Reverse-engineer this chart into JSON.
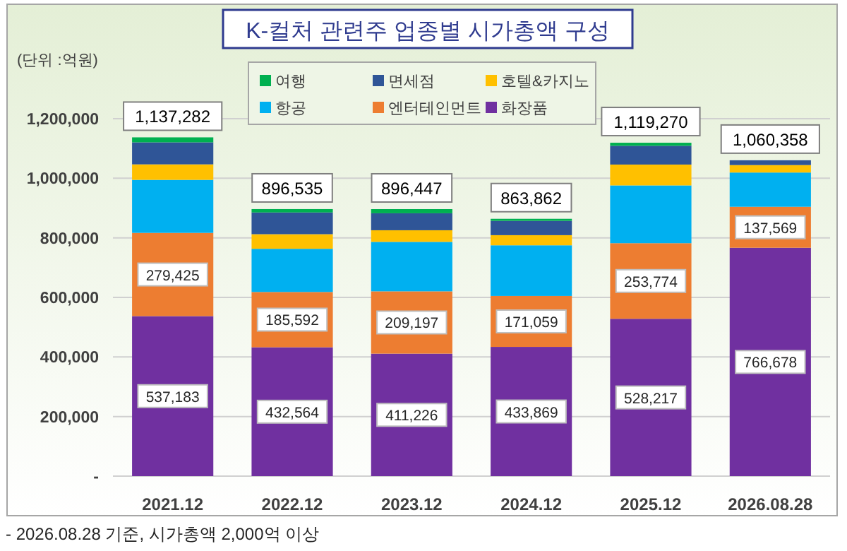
{
  "chart_data": {
    "type": "bar",
    "stacked": true,
    "title": "K-컬처 관련주 업종별 시가총액 구성",
    "ylabel": "(단위 :억원)",
    "annotations": [
      "- 2026.08.28 기준, 시가총액 2,000억 이상"
    ],
    "categories": [
      "2021.12",
      "2022.12",
      "2023.12",
      "2024.12",
      "2025.12",
      "2026.08.28"
    ],
    "series": [
      {
        "name": "화장품",
        "color": "#7030a0",
        "values": [
          537183,
          432564,
          411226,
          433869,
          528217,
          766678
        ],
        "value_labels": [
          "537,183",
          "432,564",
          "411,226",
          "433,869",
          "528,217",
          "766,678"
        ]
      },
      {
        "name": "엔터테인먼트",
        "color": "#ed7d31",
        "values": [
          279425,
          185592,
          209197,
          171059,
          253774,
          137569
        ],
        "value_labels": [
          "279,425",
          "185,592",
          "209,197",
          "171,059",
          "253,774",
          "137,569"
        ]
      },
      {
        "name": "항공",
        "color": "#00b0f0",
        "values": [
          178000,
          145000,
          166000,
          170000,
          194000,
          115000
        ]
      },
      {
        "name": "호텔&카지노",
        "color": "#ffc000",
        "values": [
          52000,
          49000,
          39000,
          34000,
          70000,
          25000
        ]
      },
      {
        "name": "면세점",
        "color": "#2f5597",
        "values": [
          74000,
          73000,
          57000,
          48000,
          63000,
          16111
        ]
      },
      {
        "name": "여행",
        "color": "#00b050",
        "values": [
          16674,
          11379,
          14024,
          6934,
          10279,
          0
        ]
      }
    ],
    "totals": [
      "1,137,282",
      "896,535",
      "896,447",
      "863,862",
      "1,119,270",
      "1,060,358"
    ],
    "ylim": [
      0,
      1200000
    ],
    "yticks": [
      {
        "value": 0,
        "label": "-"
      },
      {
        "value": 200000,
        "label": "200,000"
      },
      {
        "value": 400000,
        "label": "400,000"
      },
      {
        "value": 600000,
        "label": "600,000"
      },
      {
        "value": 800000,
        "label": "800,000"
      },
      {
        "value": 1000000,
        "label": "1,000,000"
      },
      {
        "value": 1200000,
        "label": "1,200,000"
      }
    ],
    "grid": "y",
    "legend": "top"
  }
}
